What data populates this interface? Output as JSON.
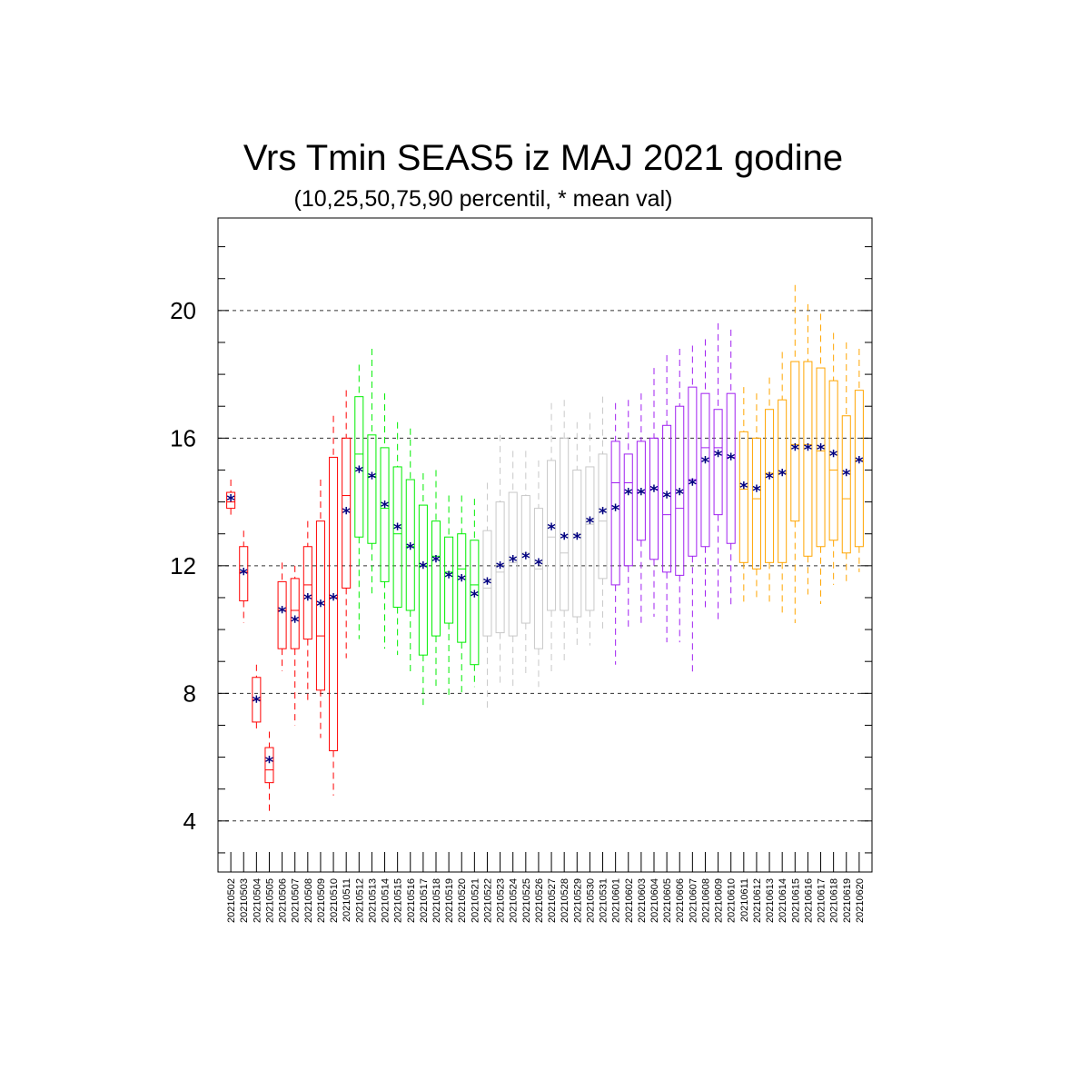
{
  "chart_data": {
    "type": "boxplot",
    "title": "Vrs Tmin SEAS5 iz MAJ 2021 godine",
    "subtitle": "(10,25,50,75,90 percentil, * mean val)",
    "ylim": [
      2.4,
      22.9
    ],
    "yticks": [
      4,
      8,
      12,
      16,
      20
    ],
    "grid_y": true,
    "mean_marker": "*",
    "mean_color": "#000080",
    "colors": {
      "red": "#ff0000",
      "green": "#00ee00",
      "gray": "#c8c8c8",
      "purple": "#a020f0",
      "orange": "#ffa500"
    },
    "boxes": [
      {
        "date": "20210502",
        "color": "red",
        "p10": 13.5,
        "p25": 13.8,
        "p50": 14.0,
        "p75": 14.3,
        "p90": 14.7,
        "mean": 14.1
      },
      {
        "date": "20210503",
        "color": "red",
        "p10": 10.2,
        "p25": 10.9,
        "p50": 11.8,
        "p75": 12.6,
        "p90": 13.1,
        "mean": 11.8
      },
      {
        "date": "20210504",
        "color": "red",
        "p10": 6.9,
        "p25": 7.1,
        "p50": 7.8,
        "p75": 8.5,
        "p90": 8.9,
        "mean": 7.8
      },
      {
        "date": "20210505",
        "color": "red",
        "p10": 4.3,
        "p25": 5.2,
        "p50": 5.6,
        "p75": 6.3,
        "p90": 6.8,
        "mean": 5.9
      },
      {
        "date": "20210506",
        "color": "red",
        "p10": 8.7,
        "p25": 9.4,
        "p50": 10.6,
        "p75": 11.5,
        "p90": 12.1,
        "mean": 10.6
      },
      {
        "date": "20210507",
        "color": "red",
        "p10": 7.0,
        "p25": 9.4,
        "p50": 10.6,
        "p75": 11.6,
        "p90": 12.0,
        "mean": 10.3
      },
      {
        "date": "20210508",
        "color": "red",
        "p10": 7.7,
        "p25": 9.7,
        "p50": 11.4,
        "p75": 12.6,
        "p90": 13.4,
        "mean": 11.0
      },
      {
        "date": "20210509",
        "color": "red",
        "p10": 6.6,
        "p25": 8.1,
        "p50": 9.8,
        "p75": 13.4,
        "p90": 14.7,
        "mean": 10.8
      },
      {
        "date": "20210510",
        "color": "red",
        "p10": 4.8,
        "p25": 6.2,
        "p50": 11.0,
        "p75": 15.4,
        "p90": 16.7,
        "mean": 11.0
      },
      {
        "date": "20210511",
        "color": "red",
        "p10": 9.1,
        "p25": 11.3,
        "p50": 14.2,
        "p75": 16.0,
        "p90": 17.5,
        "mean": 13.7
      },
      {
        "date": "20210512",
        "color": "green",
        "p10": 9.7,
        "p25": 12.9,
        "p50": 15.5,
        "p75": 17.3,
        "p90": 18.3,
        "mean": 15.0
      },
      {
        "date": "20210513",
        "color": "green",
        "p10": 11.1,
        "p25": 12.7,
        "p50": 14.8,
        "p75": 16.1,
        "p90": 18.8,
        "mean": 14.8
      },
      {
        "date": "20210514",
        "color": "green",
        "p10": 9.4,
        "p25": 11.5,
        "p50": 13.8,
        "p75": 15.7,
        "p90": 17.4,
        "mean": 13.9
      },
      {
        "date": "20210515",
        "color": "green",
        "p10": 9.2,
        "p25": 10.7,
        "p50": 13.0,
        "p75": 15.1,
        "p90": 16.5,
        "mean": 13.2
      },
      {
        "date": "20210516",
        "color": "green",
        "p10": 8.6,
        "p25": 10.6,
        "p50": 12.6,
        "p75": 14.7,
        "p90": 16.3,
        "mean": 12.6
      },
      {
        "date": "20210517",
        "color": "green",
        "p10": 7.5,
        "p25": 9.2,
        "p50": 12.0,
        "p75": 13.9,
        "p90": 14.9,
        "mean": 12.0
      },
      {
        "date": "20210518",
        "color": "green",
        "p10": 8.2,
        "p25": 9.8,
        "p50": 12.3,
        "p75": 13.4,
        "p90": 15.0,
        "mean": 12.2
      },
      {
        "date": "20210519",
        "color": "green",
        "p10": 7.9,
        "p25": 10.2,
        "p50": 11.8,
        "p75": 12.9,
        "p90": 14.2,
        "mean": 11.7
      },
      {
        "date": "20210520",
        "color": "green",
        "p10": 7.9,
        "p25": 9.6,
        "p50": 11.9,
        "p75": 13.0,
        "p90": 14.2,
        "mean": 11.6
      },
      {
        "date": "20210521",
        "color": "green",
        "p10": 8.2,
        "p25": 8.9,
        "p50": 11.4,
        "p75": 12.8,
        "p90": 14.1,
        "mean": 11.1
      },
      {
        "date": "20210522",
        "color": "gray",
        "p10": 7.5,
        "p25": 9.8,
        "p50": 11.3,
        "p75": 13.1,
        "p90": 14.6,
        "mean": 11.5
      },
      {
        "date": "20210523",
        "color": "gray",
        "p10": 8.2,
        "p25": 9.9,
        "p50": 11.8,
        "p75": 14.0,
        "p90": 16.1,
        "mean": 12.0
      },
      {
        "date": "20210524",
        "color": "gray",
        "p10": 8.2,
        "p25": 9.8,
        "p50": 12.1,
        "p75": 14.3,
        "p90": 15.6,
        "mean": 12.2
      },
      {
        "date": "20210525",
        "color": "gray",
        "p10": 8.5,
        "p25": 10.2,
        "p50": 12.4,
        "p75": 14.2,
        "p90": 15.6,
        "mean": 12.3
      },
      {
        "date": "20210526",
        "color": "gray",
        "p10": 8.2,
        "p25": 9.4,
        "p50": 11.9,
        "p75": 13.8,
        "p90": 15.3,
        "mean": 12.1
      },
      {
        "date": "20210527",
        "color": "gray",
        "p10": 8.6,
        "p25": 10.6,
        "p50": 12.9,
        "p75": 15.3,
        "p90": 17.1,
        "mean": 13.2
      },
      {
        "date": "20210528",
        "color": "gray",
        "p10": 8.9,
        "p25": 10.6,
        "p50": 12.4,
        "p75": 16.0,
        "p90": 17.2,
        "mean": 12.9
      },
      {
        "date": "20210529",
        "color": "gray",
        "p10": 9.5,
        "p25": 10.4,
        "p50": 13.0,
        "p75": 15.0,
        "p90": 16.5,
        "mean": 12.9
      },
      {
        "date": "20210530",
        "color": "gray",
        "p10": 9.5,
        "p25": 10.6,
        "p50": 13.3,
        "p75": 15.1,
        "p90": 16.8,
        "mean": 13.4
      },
      {
        "date": "20210531",
        "color": "gray",
        "p10": 9.9,
        "p25": 11.6,
        "p50": 13.4,
        "p75": 15.5,
        "p90": 17.3,
        "mean": 13.7
      },
      {
        "date": "20210601",
        "color": "purple",
        "p10": 8.9,
        "p25": 11.4,
        "p50": 14.6,
        "p75": 15.9,
        "p90": 17.1,
        "mean": 13.8
      },
      {
        "date": "20210602",
        "color": "purple",
        "p10": 10.0,
        "p25": 12.0,
        "p50": 14.6,
        "p75": 15.5,
        "p90": 17.2,
        "mean": 14.3
      },
      {
        "date": "20210603",
        "color": "purple",
        "p10": 10.1,
        "p25": 12.8,
        "p50": 14.3,
        "p75": 15.9,
        "p90": 17.4,
        "mean": 14.3
      },
      {
        "date": "20210604",
        "color": "purple",
        "p10": 10.4,
        "p25": 12.2,
        "p50": 14.4,
        "p75": 16.0,
        "p90": 18.2,
        "mean": 14.4
      },
      {
        "date": "20210605",
        "color": "purple",
        "p10": 9.6,
        "p25": 11.8,
        "p50": 13.6,
        "p75": 16.4,
        "p90": 18.6,
        "mean": 14.2
      },
      {
        "date": "20210606",
        "color": "purple",
        "p10": 9.6,
        "p25": 11.7,
        "p50": 13.8,
        "p75": 17.0,
        "p90": 18.8,
        "mean": 14.3
      },
      {
        "date": "20210607",
        "color": "purple",
        "p10": 8.6,
        "p25": 12.3,
        "p50": 14.7,
        "p75": 17.6,
        "p90": 18.9,
        "mean": 14.6
      },
      {
        "date": "20210608",
        "color": "purple",
        "p10": 10.7,
        "p25": 12.6,
        "p50": 15.7,
        "p75": 17.4,
        "p90": 19.1,
        "mean": 15.3
      },
      {
        "date": "20210609",
        "color": "purple",
        "p10": 10.3,
        "p25": 13.6,
        "p50": 15.7,
        "p75": 16.9,
        "p90": 19.6,
        "mean": 15.5
      },
      {
        "date": "20210610",
        "color": "purple",
        "p10": 10.7,
        "p25": 12.7,
        "p50": 15.4,
        "p75": 17.4,
        "p90": 19.4,
        "mean": 15.4
      },
      {
        "date": "20210611",
        "color": "orange",
        "p10": 10.8,
        "p25": 12.1,
        "p50": 14.4,
        "p75": 16.2,
        "p90": 17.6,
        "mean": 14.5
      },
      {
        "date": "20210612",
        "color": "orange",
        "p10": 10.9,
        "p25": 11.9,
        "p50": 14.1,
        "p75": 16.0,
        "p90": 17.4,
        "mean": 14.4
      },
      {
        "date": "20210613",
        "color": "orange",
        "p10": 10.8,
        "p25": 12.1,
        "p50": 14.9,
        "p75": 16.9,
        "p90": 17.9,
        "mean": 14.8
      },
      {
        "date": "20210614",
        "color": "orange",
        "p10": 10.5,
        "p25": 12.1,
        "p50": 14.9,
        "p75": 17.2,
        "p90": 18.7,
        "mean": 14.9
      },
      {
        "date": "20210615",
        "color": "orange",
        "p10": 10.2,
        "p25": 13.4,
        "p50": 15.8,
        "p75": 18.4,
        "p90": 20.8,
        "mean": 15.7
      },
      {
        "date": "20210616",
        "color": "orange",
        "p10": 11.1,
        "p25": 12.3,
        "p50": 15.8,
        "p75": 18.4,
        "p90": 20.2,
        "mean": 15.7
      },
      {
        "date": "20210617",
        "color": "orange",
        "p10": 10.8,
        "p25": 12.6,
        "p50": 15.6,
        "p75": 18.2,
        "p90": 19.9,
        "mean": 15.7
      },
      {
        "date": "20210618",
        "color": "orange",
        "p10": 11.4,
        "p25": 12.8,
        "p50": 15.0,
        "p75": 17.8,
        "p90": 19.3,
        "mean": 15.5
      },
      {
        "date": "20210619",
        "color": "orange",
        "p10": 11.4,
        "p25": 12.4,
        "p50": 14.1,
        "p75": 16.7,
        "p90": 19.0,
        "mean": 14.9
      },
      {
        "date": "20210620",
        "color": "orange",
        "p10": 11.8,
        "p25": 12.6,
        "p50": 15.3,
        "p75": 17.5,
        "p90": 18.8,
        "mean": 15.3
      }
    ]
  }
}
